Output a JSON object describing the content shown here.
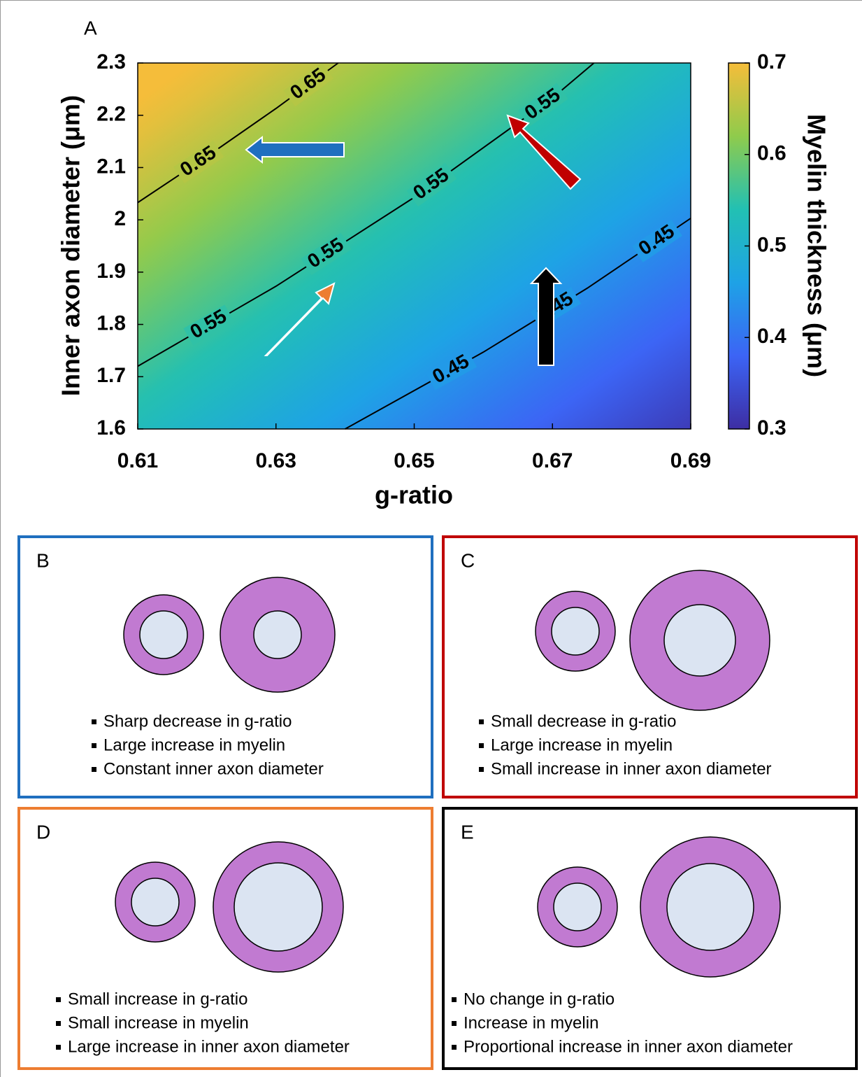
{
  "chart_data": {
    "type": "contour",
    "panel_label": "A",
    "x_label": "g-ratio",
    "y_label": "Inner axon diameter (μm)",
    "xlim": [
      0.61,
      0.69
    ],
    "xticks": [
      0.61,
      0.63,
      0.65,
      0.67,
      0.69
    ],
    "ylim": [
      1.6,
      2.3
    ],
    "yticks": [
      1.6,
      1.7,
      1.8,
      1.9,
      2,
      2.1,
      2.2,
      2.3
    ],
    "colorbar": {
      "label": "Myelin thickness (μm)",
      "clim": [
        0.3,
        0.7
      ],
      "ticks": [
        0.3,
        0.4,
        0.5,
        0.6,
        0.7
      ],
      "colors": [
        "#3d2ea3",
        "#3c64f5",
        "#1ea2e6",
        "#22c0b3",
        "#8fcb4c",
        "#f5bd3a"
      ]
    },
    "contours": [
      {
        "level": 0.65,
        "x": [
          0.61,
          0.62,
          0.63,
          0.639
        ],
        "y": [
          2.033,
          2.121,
          2.213,
          2.3
        ]
      },
      {
        "level": 0.55,
        "x": [
          0.61,
          0.63,
          0.65,
          0.67,
          0.676
        ],
        "y": [
          1.72,
          1.873,
          2.043,
          2.233,
          2.3
        ]
      },
      {
        "level": 0.45,
        "x": [
          0.64,
          0.66,
          0.675,
          0.69
        ],
        "y": [
          1.6,
          1.747,
          1.869,
          2.003
        ]
      }
    ]
  },
  "panels": [
    {
      "label": "B",
      "border_color": "#1f6fbf",
      "bullets": [
        "Sharp decrease in g-ratio",
        "Large increase in myelin",
        "Constant inner axon diameter"
      ]
    },
    {
      "label": "C",
      "border_color": "#c00000",
      "bullets": [
        "Small decrease in g-ratio",
        "Large increase in myelin",
        "Small increase in inner axon diameter"
      ]
    },
    {
      "label": "D",
      "border_color": "#ed7d31",
      "bullets": [
        "Small increase in g-ratio",
        "Small increase in myelin",
        "Large increase in inner axon diameter"
      ]
    },
    {
      "label": "E",
      "border_color": "#000000",
      "bullets": [
        "No change in g-ratio",
        "Increase in myelin",
        "Proportional increase in inner axon diameter"
      ]
    }
  ]
}
